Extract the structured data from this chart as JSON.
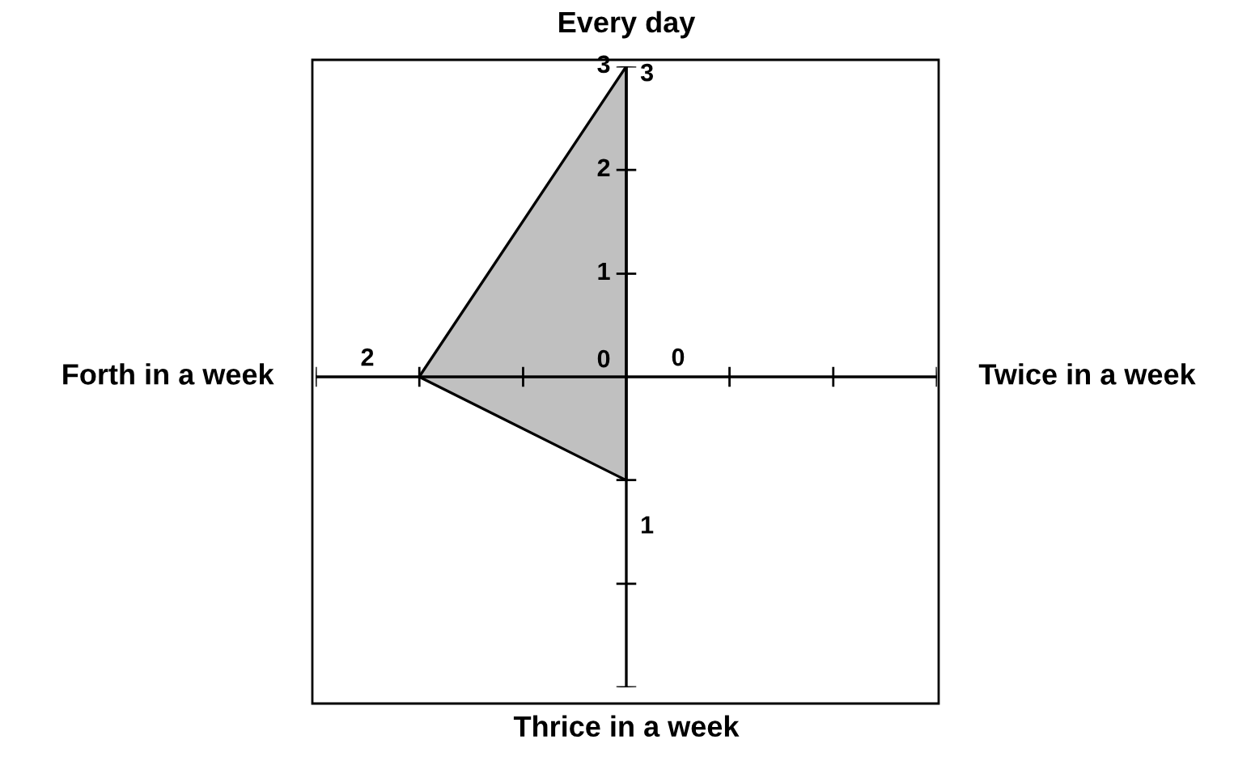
{
  "chart_data": {
    "type": "radar",
    "categories": [
      "Every day",
      "Twice in a week",
      "Thrice in a week",
      "Forth in a week"
    ],
    "series": [
      {
        "color": "#c0c0c0",
        "values": [
          3,
          0,
          1,
          2
        ]
      }
    ],
    "ylim": [
      0,
      3
    ],
    "yticks": [
      0,
      1,
      2,
      3
    ],
    "data_labels": true,
    "legend": false
  }
}
